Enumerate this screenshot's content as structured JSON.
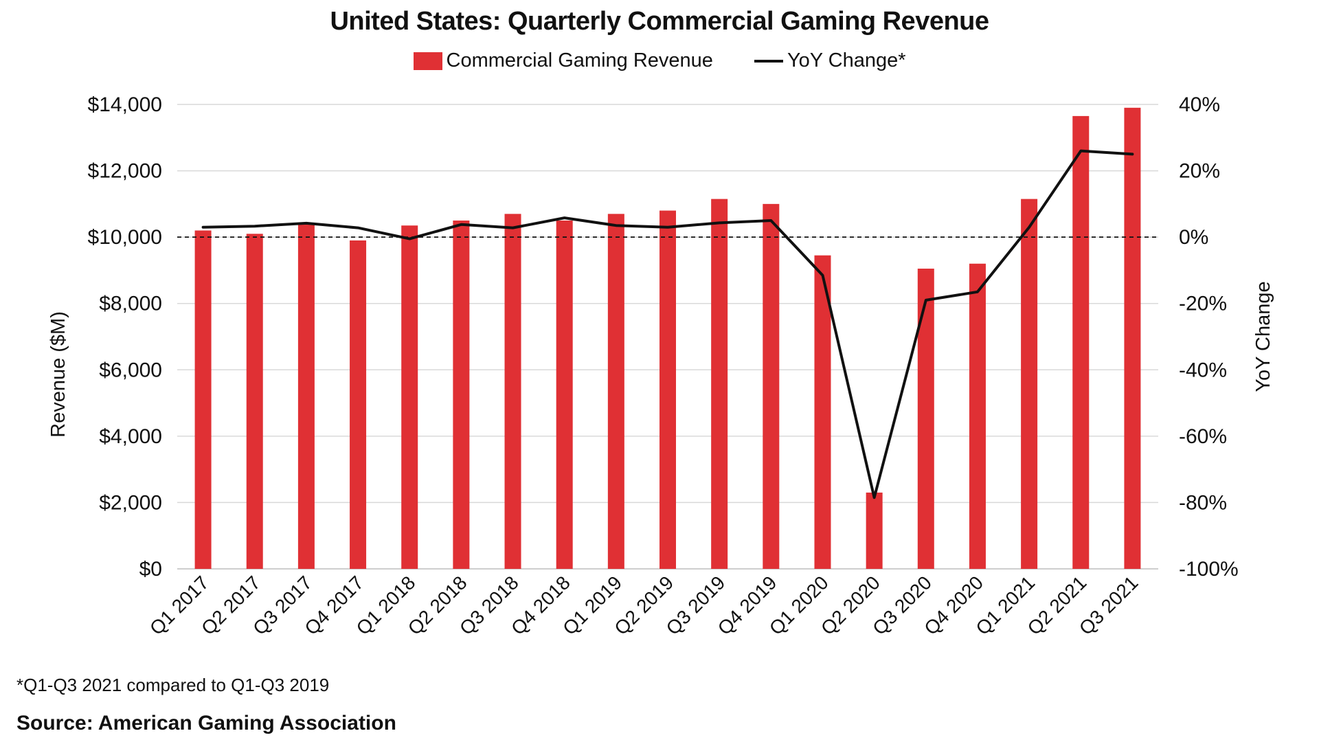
{
  "chart_data": {
    "type": "bar",
    "title": "United States: Quarterly Commercial Gaming Revenue",
    "categories": [
      "Q1 2017",
      "Q2 2017",
      "Q3 2017",
      "Q4 2017",
      "Q1 2018",
      "Q2 2018",
      "Q3 2018",
      "Q4 2018",
      "Q1 2019",
      "Q2 2019",
      "Q3 2019",
      "Q4 2019",
      "Q1 2020",
      "Q2 2020",
      "Q3 2020",
      "Q4 2020",
      "Q1 2021",
      "Q2 2021",
      "Q3 2021"
    ],
    "series": [
      {
        "name": "Commercial Gaming Revenue",
        "type": "bar",
        "axis": "left",
        "color": "#e03034",
        "values": [
          10200,
          10100,
          10400,
          9900,
          10350,
          10500,
          10700,
          10500,
          10700,
          10800,
          11150,
          11000,
          9450,
          2300,
          9050,
          9200,
          11150,
          13650,
          13900
        ]
      },
      {
        "name": "YoY Change*",
        "type": "line",
        "axis": "right",
        "color": "#111111",
        "values": [
          3.0,
          3.3,
          4.2,
          2.8,
          -0.5,
          3.8,
          2.8,
          5.8,
          3.5,
          3.0,
          4.3,
          5.0,
          -11.5,
          -78.5,
          -19.0,
          -16.5,
          3.0,
          26.0,
          25.0
        ]
      }
    ],
    "ylabel": "Revenue ($M)",
    "ylabel_right": "YoY Change",
    "ylim": [
      0,
      14000
    ],
    "ylim_right": [
      -100,
      40
    ],
    "yticks": [
      "$0",
      "$2,000",
      "$4,000",
      "$6,000",
      "$8,000",
      "$10,000",
      "$12,000",
      "$14,000"
    ],
    "yticks_right": [
      "-100%",
      "-80%",
      "-60%",
      "-40%",
      "-20%",
      "0%",
      "20%",
      "40%"
    ],
    "reference_line_right": 0,
    "grid": true,
    "legend_position": "top-center"
  },
  "footnote": "*Q1-Q3 2021 compared to Q1-Q3 2019",
  "source": "Source: American Gaming Association"
}
